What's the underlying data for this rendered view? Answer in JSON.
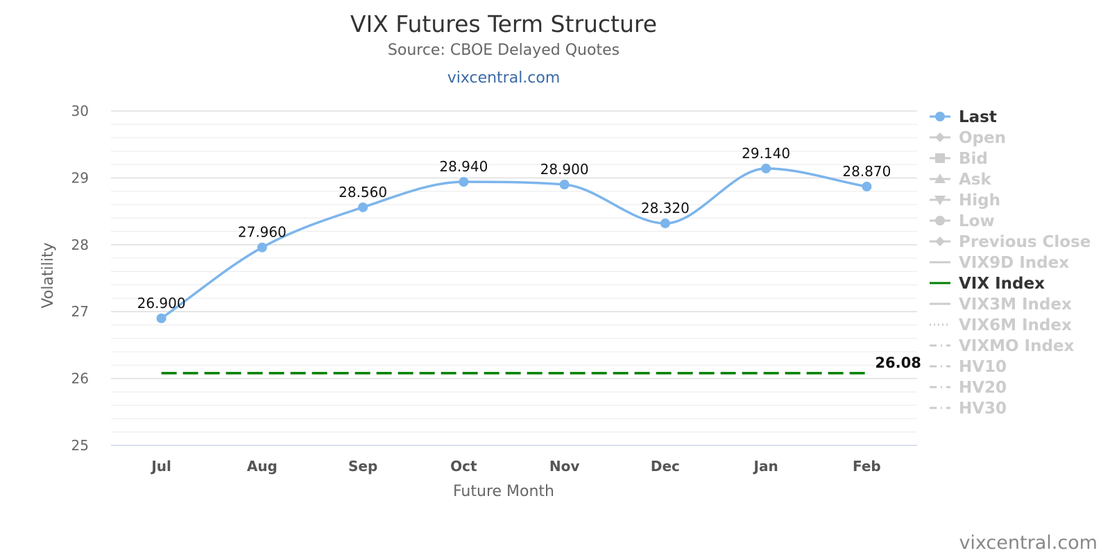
{
  "chart_data": {
    "type": "line",
    "title": "VIX Futures Term Structure",
    "subtitle": "Source: CBOE Delayed Quotes",
    "link_text": "vixcentral.com",
    "watermark": "vixcentral.com",
    "xlabel": "Future Month",
    "ylabel": "Volatility",
    "categories": [
      "Jul",
      "Aug",
      "Sep",
      "Oct",
      "Nov",
      "Dec",
      "Jan",
      "Feb"
    ],
    "ylim": [
      25,
      30
    ],
    "yticks": [
      "25",
      "26",
      "27",
      "28",
      "29",
      "30"
    ],
    "grid": true,
    "legend_position": "right",
    "series": [
      {
        "name": "Last",
        "values": [
          26.9,
          27.96,
          28.56,
          28.94,
          28.9,
          28.32,
          29.14,
          28.87
        ],
        "labels": [
          "26.900",
          "27.960",
          "28.560",
          "28.940",
          "28.900",
          "28.320",
          "29.140",
          "28.870"
        ],
        "color": "#7cb5ec",
        "style": "spline",
        "markers": true
      },
      {
        "name": "VIX Index",
        "values": [
          26.08,
          26.08,
          26.08,
          26.08,
          26.08,
          26.08,
          26.08,
          26.08
        ],
        "end_label": "26.08",
        "color": "#008000",
        "style": "dashed"
      }
    ],
    "legend": [
      {
        "name": "Last",
        "active": true,
        "symbol": "circle-line"
      },
      {
        "name": "Open",
        "active": false,
        "symbol": "diamond-line"
      },
      {
        "name": "Bid",
        "active": false,
        "symbol": "square-line"
      },
      {
        "name": "Ask",
        "active": false,
        "symbol": "triangle-line"
      },
      {
        "name": "High",
        "active": false,
        "symbol": "triangle-down-line"
      },
      {
        "name": "Low",
        "active": false,
        "symbol": "circle-line"
      },
      {
        "name": "Previous Close",
        "active": false,
        "symbol": "diamond-line"
      },
      {
        "name": "VIX9D Index",
        "active": false,
        "symbol": "solid-line"
      },
      {
        "name": "VIX Index",
        "active": true,
        "symbol": "solid-line"
      },
      {
        "name": "VIX3M Index",
        "active": false,
        "symbol": "solid-line"
      },
      {
        "name": "VIX6M Index",
        "active": false,
        "symbol": "dotted-line"
      },
      {
        "name": "VIXMO Index",
        "active": false,
        "symbol": "dashdot-line"
      },
      {
        "name": "HV10",
        "active": false,
        "symbol": "dashdot-line"
      },
      {
        "name": "HV20",
        "active": false,
        "symbol": "dashdot-line"
      },
      {
        "name": "HV30",
        "active": false,
        "symbol": "dashdot-line"
      }
    ],
    "colors": {
      "inactive_legend": "#cccccc",
      "active_legend_text": "#333333",
      "grid": "#e6e6e6",
      "axis": "#ccd6eb"
    }
  }
}
